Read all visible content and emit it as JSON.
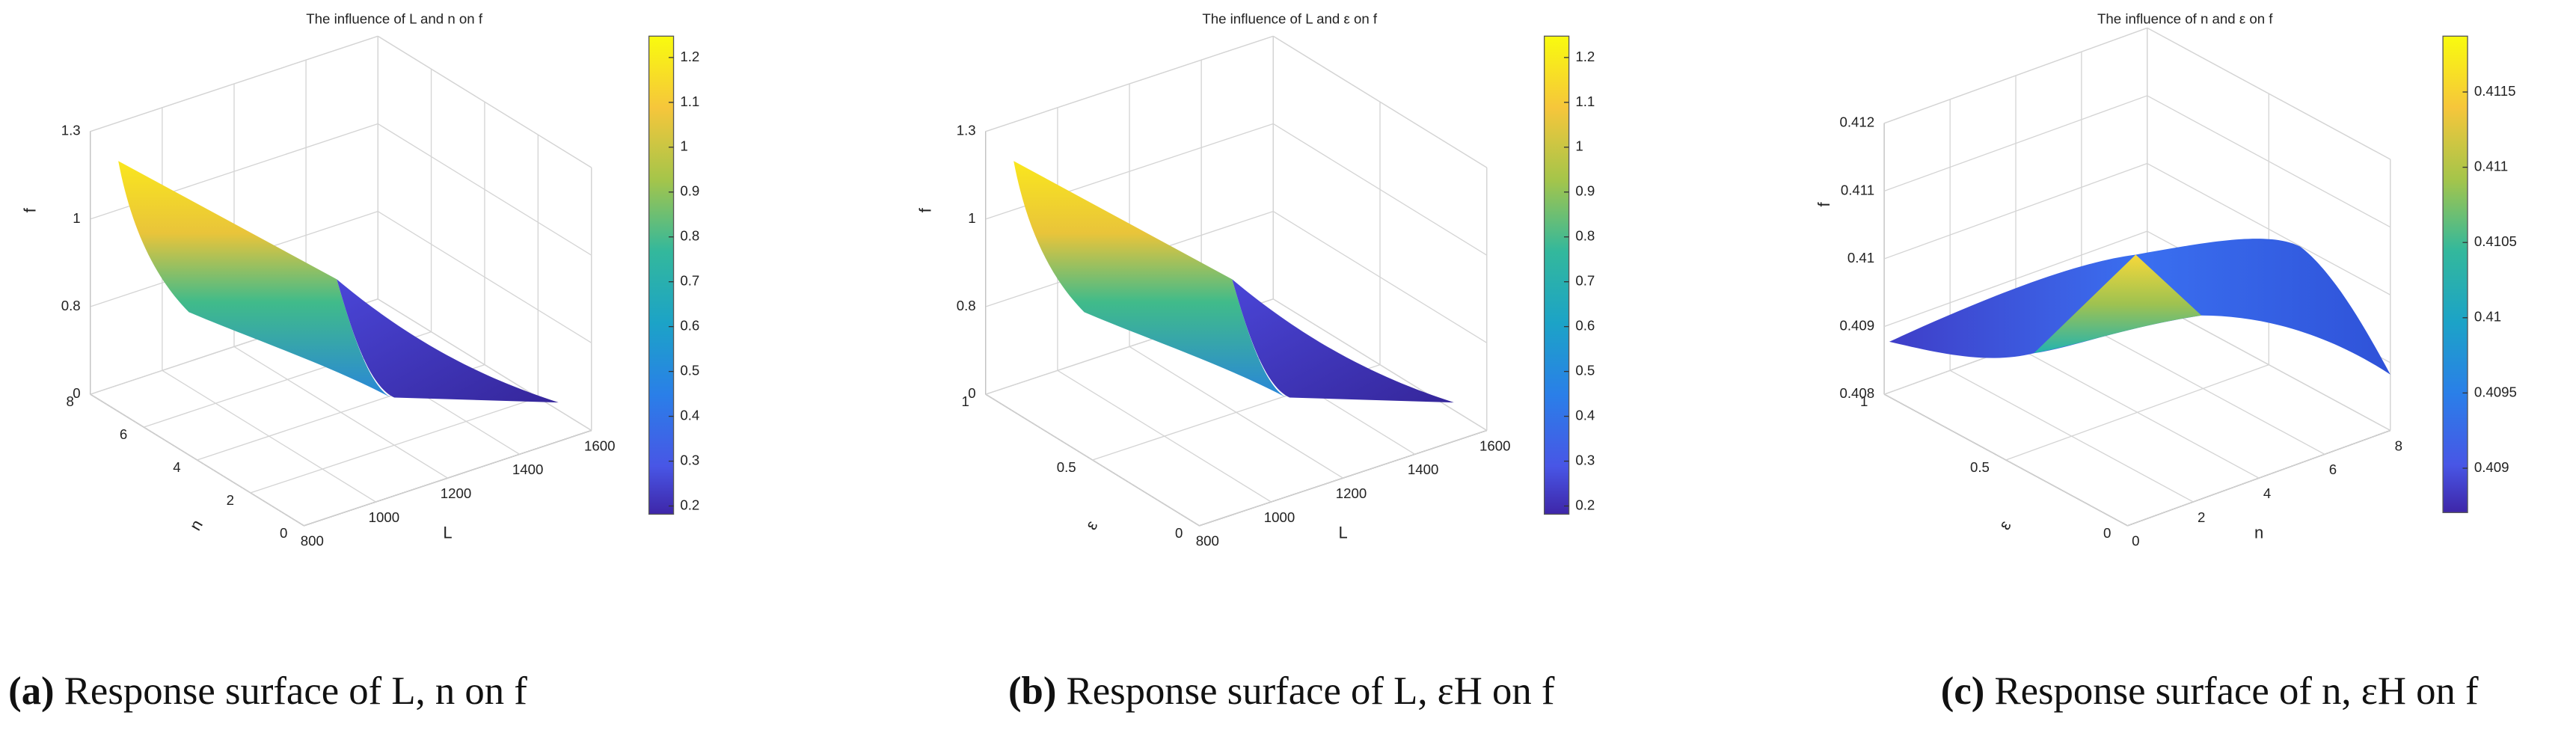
{
  "chart_data": [
    {
      "type": "surface",
      "title": "The influence of L and n on f",
      "zlabel": "f",
      "xlabel": "L",
      "ylabel": "n",
      "zticks": [
        0,
        0.8,
        1,
        1.3
      ],
      "xticks": [
        800,
        1000,
        1200,
        1400,
        1600
      ],
      "yticks": [
        0,
        2,
        4,
        6,
        8
      ],
      "cticks": [
        1.2,
        1.1,
        1,
        0.9,
        0.8,
        0.7,
        0.6,
        0.5,
        0.4,
        0.3,
        0.2
      ],
      "caption_label": "(a)",
      "caption": "Response surface of L, n on f"
    },
    {
      "type": "surface",
      "title": "The influence of L and ε on f",
      "zlabel": "f",
      "xlabel": "L",
      "ylabel": "ε",
      "zticks": [
        0,
        0.8,
        1,
        1.3
      ],
      "xticks": [
        800,
        1000,
        1200,
        1400,
        1600
      ],
      "yticks": [
        0,
        0.5,
        1
      ],
      "cticks": [
        1.2,
        1.1,
        1,
        0.9,
        0.8,
        0.7,
        0.6,
        0.5,
        0.4,
        0.3,
        0.2
      ],
      "caption_label": "(b)",
      "caption": "Response surface of L, εH on f"
    },
    {
      "type": "surface",
      "title": "The influence of n and ε on f",
      "zlabel": "f",
      "xlabel": "n",
      "ylabel": "ε",
      "zticks": [
        0.408,
        0.409,
        0.41,
        0.411,
        0.412
      ],
      "xticks": [
        0,
        2,
        4,
        6,
        8
      ],
      "yticks": [
        0,
        0.5,
        1
      ],
      "cticks": [
        0.4115,
        0.411,
        0.4105,
        0.41,
        0.4095,
        0.409
      ],
      "caption_label": "(c)",
      "caption": "Response surface of n, εH on f"
    }
  ]
}
